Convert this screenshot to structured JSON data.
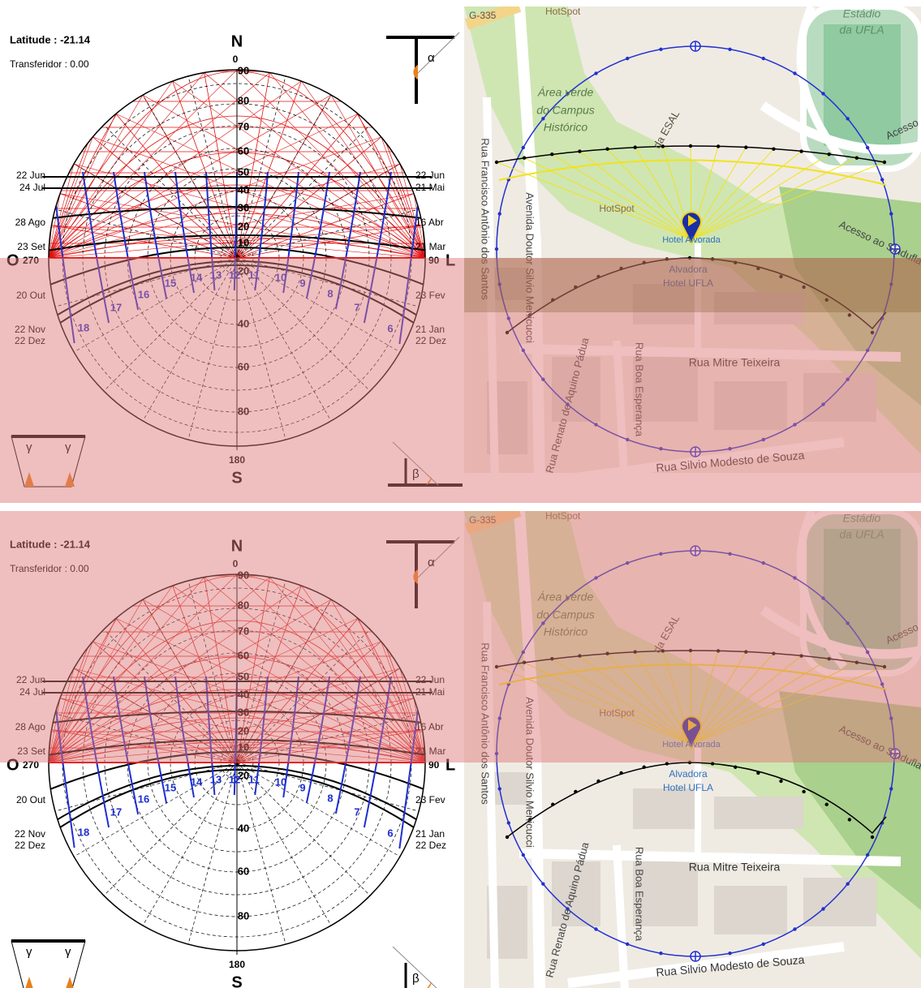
{
  "diagram": {
    "latitude": "Latitude : -21.14",
    "protractor": "Transferidor : 0.00",
    "north": "N",
    "north_deg": "0",
    "south": "S",
    "south_deg": "180",
    "west": "O",
    "west_deg": "270",
    "east_deg": "90",
    "east": "L",
    "altitude_labels_upper": [
      "90",
      "80",
      "70",
      "60",
      "50",
      "40",
      "30",
      "20",
      "10"
    ],
    "altitude_labels_lower": [
      "20",
      "40",
      "60",
      "80"
    ],
    "dates_left": [
      "22 Jun",
      "24 Jul",
      "28 Ago",
      "23 Set",
      "20 Out",
      "22 Nov",
      "22 Dez"
    ],
    "dates_right": [
      "22 Jun",
      "21 Mai",
      "16 Abr",
      "21 Mar",
      "23 Fev",
      "21 Jan",
      "22 Dez"
    ],
    "hours": [
      "18",
      "17",
      "16",
      "15",
      "14",
      "13",
      "12",
      "11",
      "10",
      "9",
      "8",
      "7",
      "6"
    ],
    "icons": {
      "alpha": "α",
      "gamma": "γ",
      "beta": "β"
    }
  },
  "map": {
    "labels": [
      "G-335",
      "HotSpot",
      "Estádio",
      "da UFLA",
      "Área verde",
      "do Campus",
      "Histórico",
      "da ESAL",
      "Rua Francisco Antônio dos Santos",
      "Avenida Doutor Silvio Menicucci",
      "HotSpot",
      "Hotel Alvorada",
      "Alvadora",
      "Hotel UFLA",
      "Acesso",
      "Acesso ao Sindufla",
      "Rua Renato de Aquino Pádua",
      "Rua Boa Esperança",
      "Rua Mitre Teixeira",
      "Rua Silvio Modesto de Souza"
    ]
  }
}
